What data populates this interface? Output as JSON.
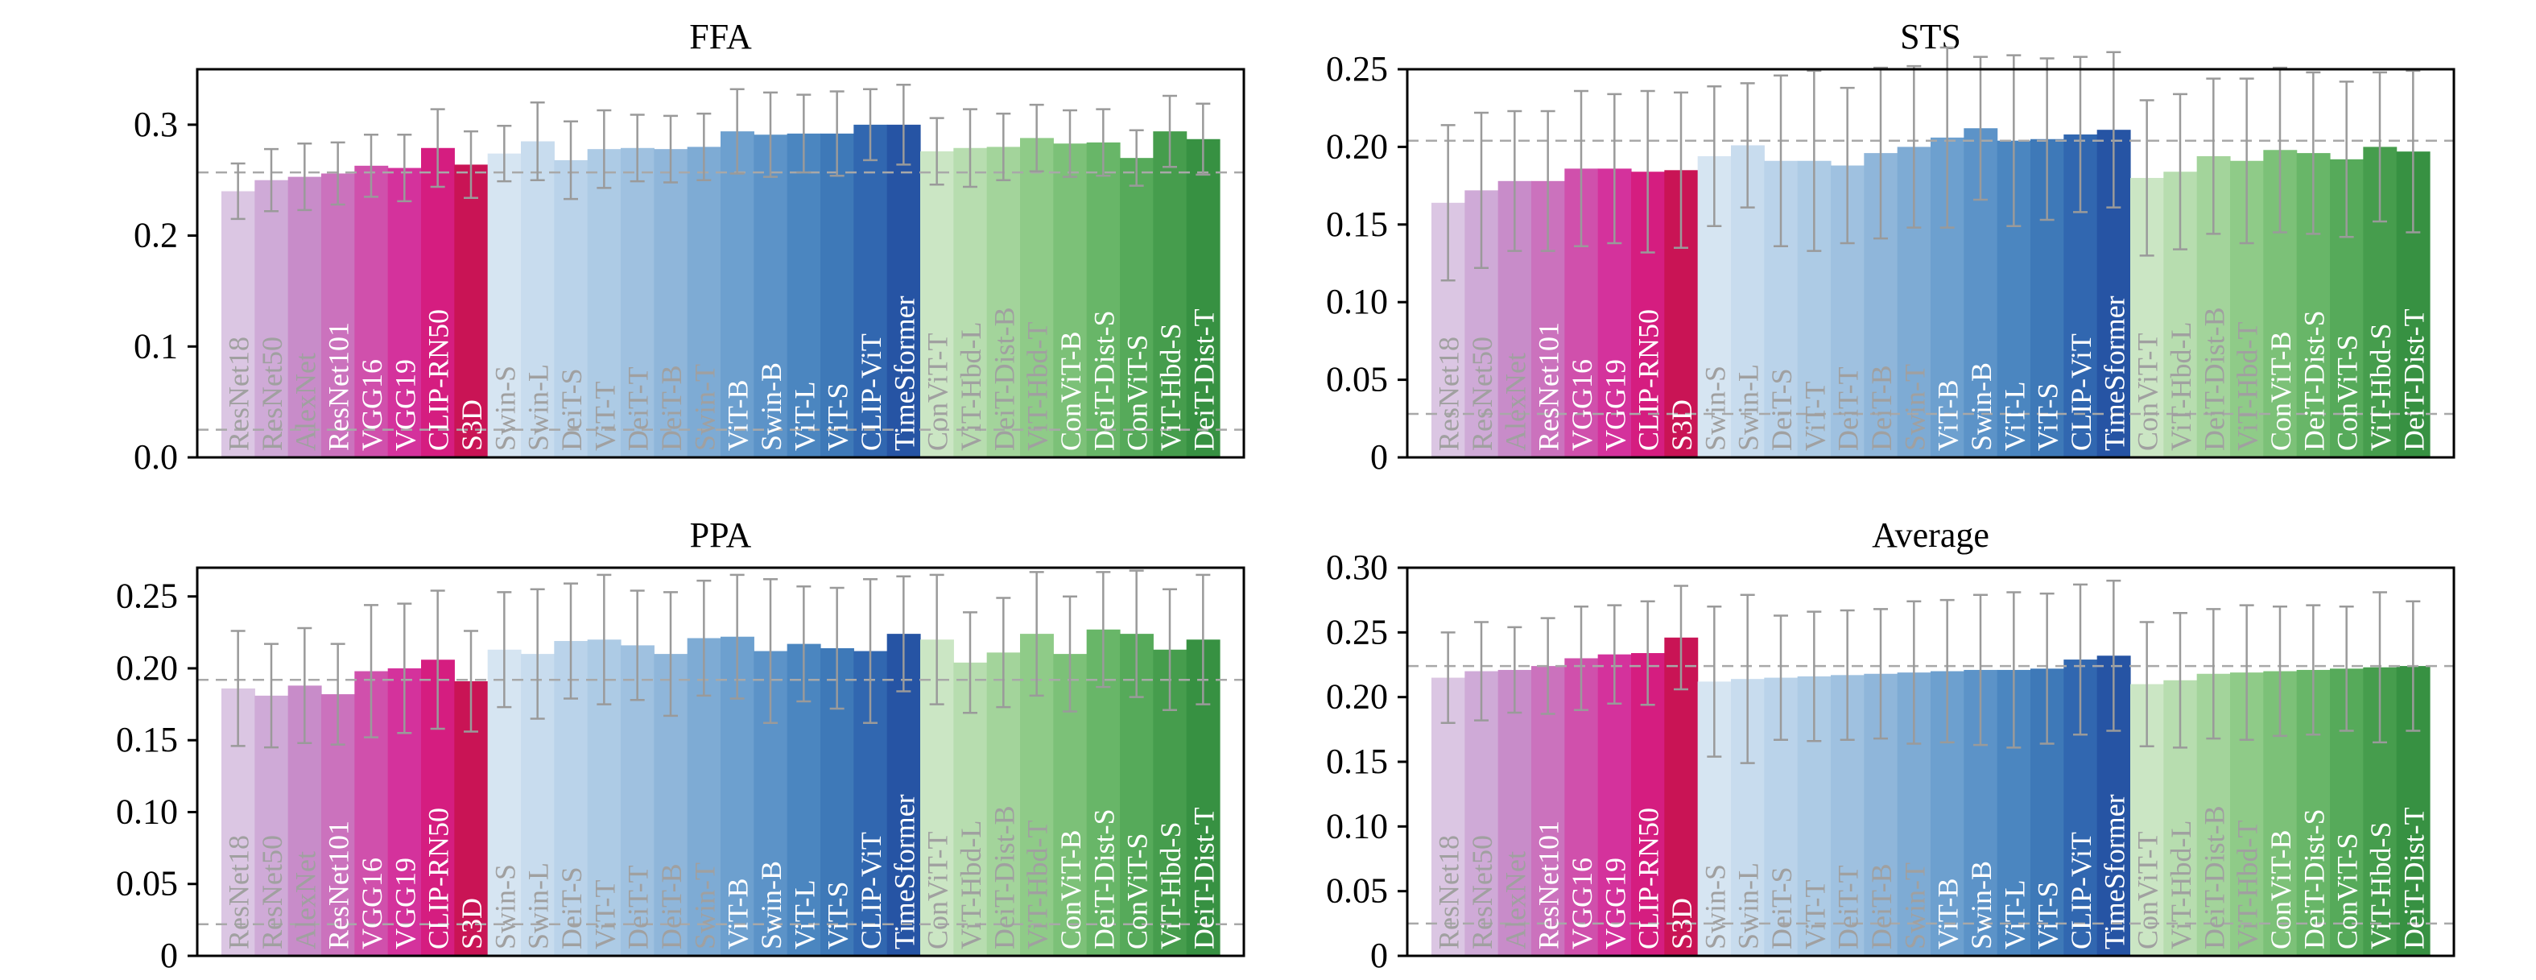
{
  "chart_data": [
    {
      "type": "bar",
      "title": "FFA",
      "ylim": [
        0,
        0.35
      ],
      "yticks": [
        0,
        0.1,
        0.2,
        0.3
      ],
      "ytick_labels": [
        "0.0",
        "0.1",
        "0.2",
        "0.3"
      ],
      "reference_lines": [
        0.257,
        0.025
      ],
      "categories": [
        "ResNet18",
        "ResNet50",
        "AlexNet",
        "ResNet101",
        "VGG16",
        "VGG19",
        "CLIP-RN50",
        "S3D",
        "Swin-S",
        "Swin-L",
        "DeiT-S",
        "ViT-T",
        "DeiT-T",
        "DeiT-B",
        "Swin-T",
        "ViT-B",
        "Swin-B",
        "ViT-L",
        "ViT-S",
        "CLIP-ViT",
        "TimeSformer",
        "ConViT-T",
        "ViT-Hbd-L",
        "DeiT-Dist-B",
        "ViT-Hbd-T",
        "ConViT-B",
        "DeiT-Dist-S",
        "ConViT-S",
        "ViT-Hbd-S",
        "DeiT-Dist-T"
      ],
      "values": [
        0.24,
        0.25,
        0.253,
        0.256,
        0.263,
        0.261,
        0.279,
        0.264,
        0.274,
        0.285,
        0.268,
        0.278,
        0.279,
        0.278,
        0.28,
        0.294,
        0.291,
        0.292,
        0.292,
        0.3,
        0.3,
        0.276,
        0.279,
        0.28,
        0.288,
        0.283,
        0.284,
        0.27,
        0.294,
        0.287
      ],
      "errors": [
        0.025,
        0.028,
        0.03,
        0.028,
        0.028,
        0.03,
        0.035,
        0.03,
        0.025,
        0.035,
        0.035,
        0.035,
        0.03,
        0.03,
        0.03,
        0.038,
        0.038,
        0.035,
        0.038,
        0.032,
        0.036,
        0.03,
        0.035,
        0.03,
        0.03,
        0.03,
        0.03,
        0.025,
        0.032,
        0.032
      ]
    },
    {
      "type": "bar",
      "title": "STS",
      "ylim": [
        0,
        0.25
      ],
      "yticks": [
        0,
        0.05,
        0.1,
        0.15,
        0.2,
        0.25
      ],
      "ytick_labels": [
        "0",
        "0.05",
        "0.10",
        "0.15",
        "0.20",
        "0.25"
      ],
      "reference_lines": [
        0.204,
        0.028
      ],
      "categories": [
        "ResNet18",
        "ResNet50",
        "AlexNet",
        "ResNet101",
        "VGG16",
        "VGG19",
        "CLIP-RN50",
        "S3D",
        "Swin-S",
        "Swin-L",
        "DeiT-S",
        "ViT-T",
        "DeiT-T",
        "DeiT-B",
        "Swin-T",
        "ViT-B",
        "Swin-B",
        "ViT-L",
        "ViT-S",
        "CLIP-ViT",
        "TimeSformer",
        "ConViT-T",
        "ViT-Hbd-L",
        "DeiT-Dist-B",
        "ViT-Hbd-T",
        "ConViT-B",
        "DeiT-Dist-S",
        "ConViT-S",
        "ViT-Hbd-S",
        "DeiT-Dist-T"
      ],
      "values": [
        0.164,
        0.172,
        0.178,
        0.178,
        0.186,
        0.186,
        0.184,
        0.185,
        0.194,
        0.201,
        0.191,
        0.191,
        0.188,
        0.196,
        0.2,
        0.206,
        0.212,
        0.204,
        0.205,
        0.208,
        0.211,
        0.18,
        0.184,
        0.194,
        0.191,
        0.198,
        0.196,
        0.192,
        0.2,
        0.197
      ],
      "errors": [
        0.05,
        0.05,
        0.045,
        0.045,
        0.05,
        0.048,
        0.052,
        0.05,
        0.045,
        0.04,
        0.055,
        0.058,
        0.05,
        0.055,
        0.052,
        0.058,
        0.046,
        0.055,
        0.052,
        0.05,
        0.05,
        0.05,
        0.05,
        0.05,
        0.053,
        0.053,
        0.052,
        0.05,
        0.048,
        0.052
      ]
    },
    {
      "type": "bar",
      "title": "PPA",
      "ylim": [
        0,
        0.27
      ],
      "yticks": [
        0,
        0.05,
        0.1,
        0.15,
        0.2,
        0.25
      ],
      "ytick_labels": [
        "0",
        "0.05",
        "0.10",
        "0.15",
        "0.20",
        "0.25"
      ],
      "reference_lines": [
        0.192,
        0.022
      ],
      "categories": [
        "ResNet18",
        "ResNet50",
        "AlexNet",
        "ResNet101",
        "VGG16",
        "VGG19",
        "CLIP-RN50",
        "S3D",
        "Swin-S",
        "Swin-L",
        "DeiT-S",
        "ViT-T",
        "DeiT-T",
        "DeiT-B",
        "Swin-T",
        "ViT-B",
        "Swin-B",
        "ViT-L",
        "ViT-S",
        "CLIP-ViT",
        "TimeSformer",
        "ConViT-T",
        "ViT-Hbd-L",
        "DeiT-Dist-B",
        "ViT-Hbd-T",
        "ConViT-B",
        "DeiT-Dist-S",
        "ConViT-S",
        "ViT-Hbd-S",
        "DeiT-Dist-T"
      ],
      "values": [
        0.186,
        0.181,
        0.188,
        0.182,
        0.198,
        0.2,
        0.206,
        0.191,
        0.213,
        0.21,
        0.219,
        0.22,
        0.216,
        0.21,
        0.221,
        0.222,
        0.212,
        0.217,
        0.214,
        0.212,
        0.224,
        0.22,
        0.204,
        0.211,
        0.224,
        0.21,
        0.227,
        0.224,
        0.213,
        0.22
      ],
      "errors": [
        0.04,
        0.036,
        0.04,
        0.035,
        0.046,
        0.045,
        0.048,
        0.035,
        0.04,
        0.045,
        0.04,
        0.045,
        0.038,
        0.043,
        0.04,
        0.043,
        0.05,
        0.04,
        0.042,
        0.05,
        0.04,
        0.045,
        0.035,
        0.038,
        0.043,
        0.04,
        0.04,
        0.044,
        0.042,
        0.045
      ]
    },
    {
      "type": "bar",
      "title": "Average",
      "ylim": [
        0,
        0.3
      ],
      "yticks": [
        0,
        0.05,
        0.1,
        0.15,
        0.2,
        0.25,
        0.3
      ],
      "ytick_labels": [
        "0",
        "0.05",
        "0.10",
        "0.15",
        "0.20",
        "0.25",
        "0.30"
      ],
      "reference_lines": [
        0.224,
        0.025
      ],
      "categories": [
        "ResNet18",
        "ResNet50",
        "AlexNet",
        "ResNet101",
        "VGG16",
        "VGG19",
        "CLIP-RN50",
        "S3D",
        "Swin-S",
        "Swin-L",
        "DeiT-S",
        "ViT-T",
        "DeiT-T",
        "DeiT-B",
        "Swin-T",
        "ViT-B",
        "Swin-B",
        "ViT-L",
        "ViT-S",
        "CLIP-ViT",
        "TimeSformer",
        "ConViT-T",
        "ViT-Hbd-L",
        "DeiT-Dist-B",
        "ViT-Hbd-T",
        "ConViT-B",
        "DeiT-Dist-S",
        "ConViT-S",
        "ViT-Hbd-S",
        "DeiT-Dist-T"
      ],
      "values": [
        0.215,
        0.22,
        0.221,
        0.224,
        0.23,
        0.233,
        0.234,
        0.246,
        0.212,
        0.214,
        0.215,
        0.216,
        0.217,
        0.218,
        0.219,
        0.22,
        0.221,
        0.221,
        0.222,
        0.229,
        0.232,
        0.21,
        0.213,
        0.218,
        0.219,
        0.22,
        0.221,
        0.222,
        0.223,
        0.224
      ],
      "errors": [
        0.035,
        0.038,
        0.033,
        0.037,
        0.04,
        0.038,
        0.04,
        0.04,
        0.058,
        0.065,
        0.048,
        0.05,
        0.05,
        0.05,
        0.055,
        0.055,
        0.058,
        0.06,
        0.058,
        0.058,
        0.058,
        0.048,
        0.052,
        0.05,
        0.052,
        0.05,
        0.05,
        0.048,
        0.058,
        0.05
      ]
    }
  ],
  "colors": {
    "bars": [
      "#dbc6e3",
      "#cfaad7",
      "#c88cc9",
      "#cb72bd",
      "#d050ac",
      "#d4329c",
      "#d51d80",
      "#c91455",
      "#d6e5f2",
      "#c8dcee",
      "#bad3ea",
      "#adcbe5",
      "#9fc1e0",
      "#8fb6da",
      "#7eabd4",
      "#6da0cf",
      "#5c93c8",
      "#4b86c0",
      "#3e79b8",
      "#3167b0",
      "#2654a4",
      "#cbe6c4",
      "#b7ddaf",
      "#a3d49b",
      "#8fcb88",
      "#7cc178",
      "#68b668",
      "#56aa5a",
      "#469d4d",
      "#379142"
    ],
    "errorbar": "#9a9a9a",
    "refline": "#a8a8a8",
    "bar_label": "#a0a0a0",
    "bar_label_on_dark": "#ffffff",
    "axis": "#000000"
  }
}
